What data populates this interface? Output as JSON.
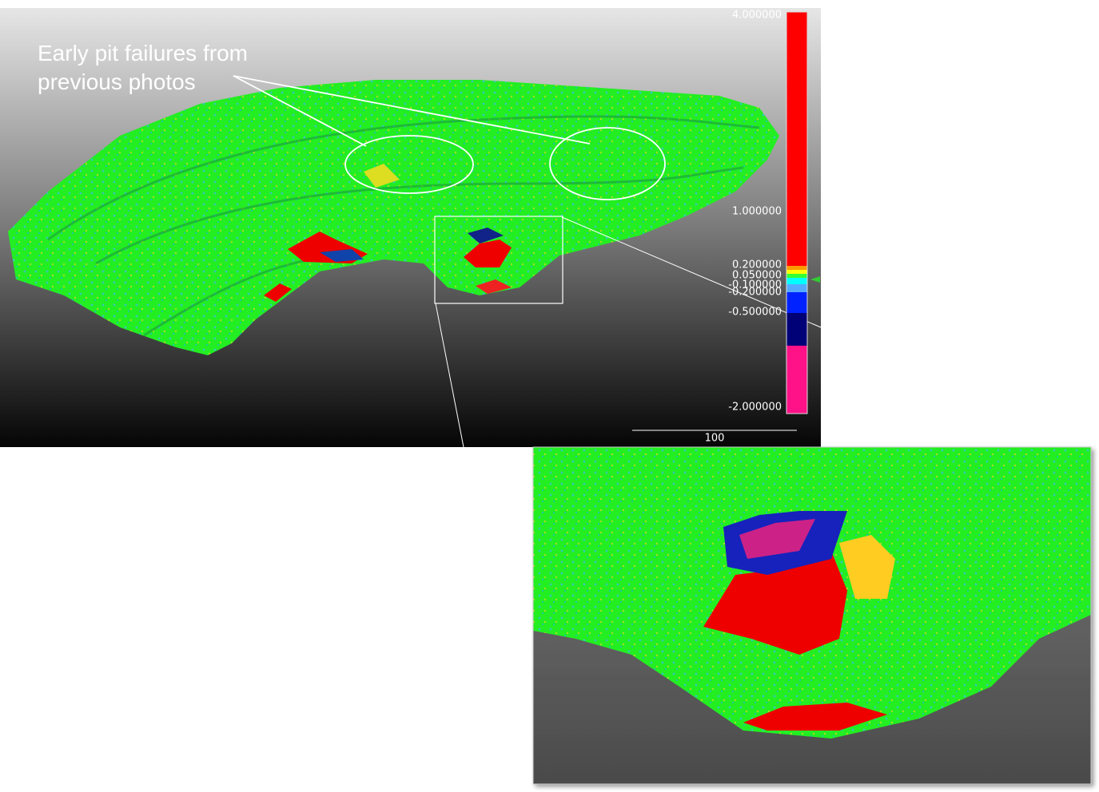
{
  "annotation": {
    "lines": [
      "Early pit failures from",
      "previous photos"
    ]
  },
  "color_scale": {
    "labels": [
      "4.000000",
      "1.000000",
      "0.200000",
      "0.050000",
      "-0.100000",
      "-0.200000",
      "-0.500000",
      "-2.000000"
    ]
  },
  "scale_bar": {
    "label": "100"
  }
}
